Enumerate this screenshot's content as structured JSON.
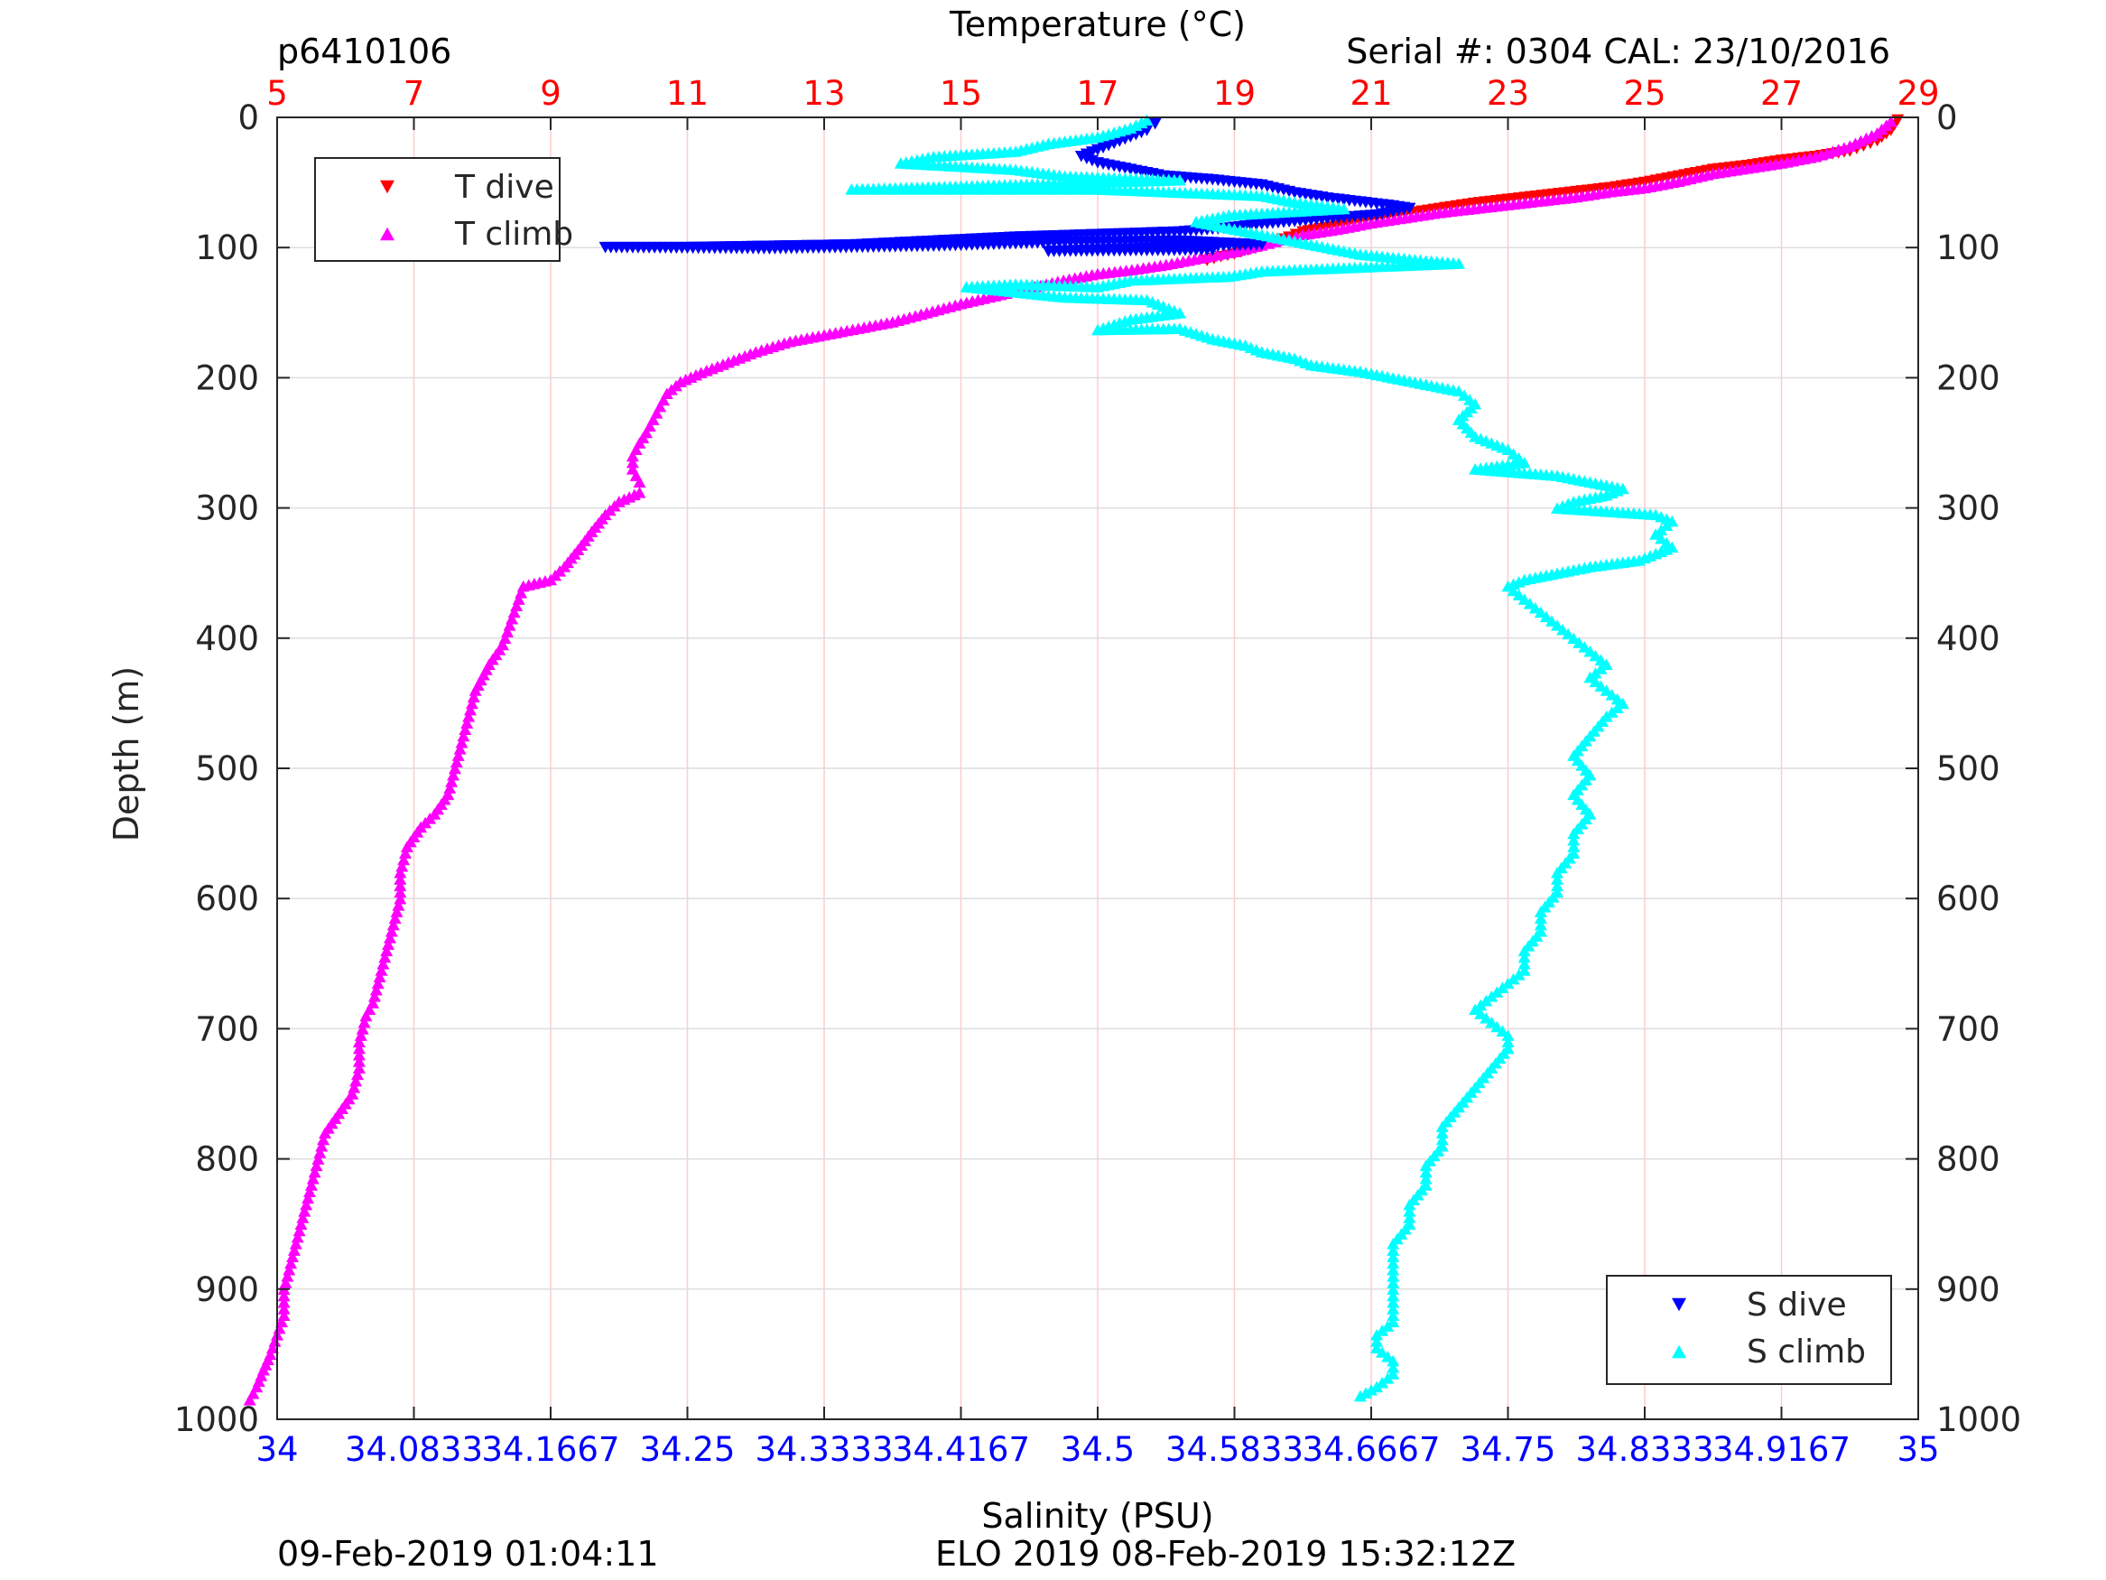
{
  "header": {
    "profile_id": "p6410106",
    "serial": "Serial #: 0304  CAL: 23/10/2016"
  },
  "footer": {
    "left": "09-Feb-2019 01:04:11",
    "right": "ELO 2019 08-Feb-2019 15:32:12Z"
  },
  "colors": {
    "t_dive": "#ff0000",
    "t_climb": "#ff00ff",
    "s_dive": "#0000ff",
    "s_climb": "#00ffff",
    "temp_axis": "#ff0000",
    "sal_axis": "#0000ff",
    "depth_axis": "#262626"
  },
  "chart_data": {
    "type": "scatter",
    "xlabel_top": "Temperature (°C)",
    "xlabel_bottom": "Salinity (PSU)",
    "ylabel": "Depth (m)",
    "temperature_range": [
      5,
      29
    ],
    "salinity_range": [
      34,
      35
    ],
    "depth_range": [
      0,
      1000
    ],
    "y_reversed": true,
    "grid": true,
    "temperature_ticks": [
      "5",
      "7",
      "9",
      "11",
      "13",
      "15",
      "17",
      "19",
      "21",
      "23",
      "25",
      "27",
      "29"
    ],
    "salinity_ticks": [
      "34",
      "34.0833",
      "34.1667",
      "34.25",
      "34.3333",
      "34.4167",
      "34.5",
      "34.5833",
      "34.6667",
      "34.75",
      "34.8333",
      "34.9167",
      "35"
    ],
    "depth_ticks": [
      "0",
      "100",
      "200",
      "300",
      "400",
      "500",
      "600",
      "700",
      "800",
      "900",
      "1000"
    ],
    "legends": [
      {
        "placement": "top-left",
        "entries": [
          {
            "label": "T dive",
            "marker": "triangle-down",
            "series": "t_dive"
          },
          {
            "label": "T climb",
            "marker": "triangle-up",
            "series": "t_climb"
          }
        ]
      },
      {
        "placement": "bottom-right",
        "entries": [
          {
            "label": "S dive",
            "marker": "triangle-down",
            "series": "s_dive"
          },
          {
            "label": "S climb",
            "marker": "triangle-up",
            "series": "s_climb"
          }
        ]
      }
    ],
    "series": [
      {
        "name": "T dive",
        "axis": "temperature",
        "marker": "triangle-down",
        "points": [
          [
            28.7,
            2
          ],
          [
            28.6,
            10
          ],
          [
            28.4,
            18
          ],
          [
            28.2,
            22
          ],
          [
            28.0,
            26
          ],
          [
            27.5,
            30
          ],
          [
            27.0,
            33
          ],
          [
            26.5,
            37
          ],
          [
            26.0,
            40
          ],
          [
            25.5,
            45
          ],
          [
            25.0,
            50
          ],
          [
            24.5,
            54
          ],
          [
            24.0,
            57
          ],
          [
            23.5,
            60
          ],
          [
            23.0,
            63
          ],
          [
            22.5,
            66
          ],
          [
            22.0,
            70
          ],
          [
            21.5,
            74
          ],
          [
            21.0,
            78
          ],
          [
            20.5,
            83
          ],
          [
            20.0,
            88
          ],
          [
            19.8,
            92
          ],
          [
            19.6,
            95
          ],
          [
            19.4,
            99
          ],
          [
            19.2,
            102
          ],
          [
            19.0,
            105
          ],
          [
            18.8,
            107
          ],
          [
            18.6,
            110
          ]
        ]
      },
      {
        "name": "T climb",
        "axis": "temperature",
        "marker": "triangle-up",
        "points": [
          [
            28.6,
            3
          ],
          [
            28.4,
            12
          ],
          [
            28.0,
            22
          ],
          [
            27.5,
            30
          ],
          [
            27.0,
            35
          ],
          [
            26.5,
            39
          ],
          [
            26.0,
            43
          ],
          [
            25.5,
            49
          ],
          [
            25.0,
            54
          ],
          [
            24.5,
            57
          ],
          [
            24.0,
            61
          ],
          [
            23.5,
            64
          ],
          [
            23.0,
            67
          ],
          [
            22.5,
            70
          ],
          [
            22.0,
            73
          ],
          [
            21.5,
            77
          ],
          [
            21.0,
            81
          ],
          [
            20.5,
            86
          ],
          [
            20.0,
            90
          ],
          [
            19.7,
            94
          ],
          [
            19.4,
            98
          ],
          [
            19.0,
            103
          ],
          [
            18.5,
            108
          ],
          [
            18.0,
            113
          ],
          [
            17.5,
            117
          ],
          [
            17.0,
            120
          ],
          [
            16.5,
            125
          ],
          [
            16.0,
            131
          ],
          [
            15.5,
            137
          ],
          [
            15.0,
            143
          ],
          [
            14.5,
            150
          ],
          [
            14.0,
            157
          ],
          [
            13.5,
            162
          ],
          [
            13.0,
            167
          ],
          [
            12.5,
            172
          ],
          [
            12.0,
            180
          ],
          [
            11.6,
            188
          ],
          [
            11.2,
            196
          ],
          [
            10.9,
            203
          ],
          [
            10.7,
            212
          ],
          [
            10.6,
            222
          ],
          [
            10.5,
            232
          ],
          [
            10.4,
            242
          ],
          [
            10.3,
            250
          ],
          [
            10.2,
            260
          ],
          [
            10.2,
            270
          ],
          [
            10.3,
            280
          ],
          [
            10.3,
            288
          ],
          [
            10.0,
            295
          ],
          [
            9.8,
            305
          ],
          [
            9.6,
            318
          ],
          [
            9.4,
            332
          ],
          [
            9.2,
            345
          ],
          [
            9.0,
            355
          ],
          [
            8.6,
            360
          ],
          [
            8.5,
            375
          ],
          [
            8.4,
            390
          ],
          [
            8.3,
            405
          ],
          [
            8.1,
            420
          ],
          [
            7.9,
            440
          ],
          [
            7.8,
            460
          ],
          [
            7.7,
            480
          ],
          [
            7.6,
            500
          ],
          [
            7.5,
            520
          ],
          [
            7.3,
            535
          ],
          [
            7.1,
            545
          ],
          [
            6.9,
            560
          ],
          [
            6.8,
            580
          ],
          [
            6.8,
            600
          ],
          [
            6.7,
            620
          ],
          [
            6.6,
            640
          ],
          [
            6.5,
            660
          ],
          [
            6.4,
            680
          ],
          [
            6.3,
            690
          ],
          [
            6.2,
            710
          ],
          [
            6.2,
            730
          ],
          [
            6.1,
            750
          ],
          [
            5.9,
            765
          ],
          [
            5.7,
            780
          ],
          [
            5.6,
            800
          ],
          [
            5.5,
            820
          ],
          [
            5.4,
            840
          ],
          [
            5.3,
            860
          ],
          [
            5.2,
            880
          ],
          [
            5.1,
            900
          ],
          [
            5.1,
            920
          ],
          [
            5.0,
            935
          ],
          [
            4.9,
            950
          ],
          [
            4.8,
            962
          ],
          [
            4.7,
            975
          ],
          [
            4.6,
            985
          ]
        ]
      },
      {
        "name": "S dive",
        "axis": "salinity",
        "marker": "triangle-down",
        "points": [
          [
            34.535,
            5
          ],
          [
            34.53,
            10
          ],
          [
            34.52,
            15
          ],
          [
            34.51,
            20
          ],
          [
            34.5,
            25
          ],
          [
            34.49,
            30
          ],
          [
            34.5,
            35
          ],
          [
            34.52,
            40
          ],
          [
            34.54,
            45
          ],
          [
            34.57,
            48
          ],
          [
            34.6,
            52
          ],
          [
            34.62,
            58
          ],
          [
            34.64,
            62
          ],
          [
            34.66,
            65
          ],
          [
            34.68,
            68
          ],
          [
            34.69,
            70
          ],
          [
            34.67,
            75
          ],
          [
            34.64,
            78
          ],
          [
            34.6,
            82
          ],
          [
            34.58,
            85
          ],
          [
            34.55,
            88
          ],
          [
            34.5,
            90
          ],
          [
            34.45,
            92
          ],
          [
            34.4,
            95
          ],
          [
            34.35,
            98
          ],
          [
            34.3,
            99
          ],
          [
            34.25,
            100
          ],
          [
            34.2,
            100
          ],
          [
            34.3,
            101
          ],
          [
            34.4,
            99
          ],
          [
            34.48,
            96
          ],
          [
            34.55,
            95
          ],
          [
            34.6,
            98
          ],
          [
            34.47,
            103
          ],
          [
            34.57,
            102
          ]
        ]
      },
      {
        "name": "S climb",
        "axis": "salinity",
        "marker": "triangle-up",
        "points": [
          [
            34.53,
            2
          ],
          [
            34.52,
            8
          ],
          [
            34.5,
            15
          ],
          [
            34.47,
            20
          ],
          [
            34.45,
            26
          ],
          [
            34.4,
            30
          ],
          [
            34.38,
            35
          ],
          [
            34.45,
            40
          ],
          [
            34.48,
            45
          ],
          [
            34.55,
            48
          ],
          [
            34.35,
            55
          ],
          [
            34.4,
            55
          ],
          [
            34.5,
            55
          ],
          [
            34.6,
            60
          ],
          [
            34.62,
            65
          ],
          [
            34.65,
            70
          ],
          [
            34.58,
            75
          ],
          [
            34.56,
            80
          ],
          [
            34.58,
            85
          ],
          [
            34.6,
            90
          ],
          [
            34.62,
            95
          ],
          [
            34.64,
            100
          ],
          [
            34.66,
            105
          ],
          [
            34.7,
            110
          ],
          [
            34.72,
            112
          ],
          [
            34.6,
            118
          ],
          [
            34.58,
            122
          ],
          [
            34.52,
            125
          ],
          [
            34.5,
            130
          ],
          [
            34.45,
            128
          ],
          [
            34.42,
            130
          ],
          [
            34.48,
            138
          ],
          [
            34.53,
            140
          ],
          [
            34.55,
            150
          ],
          [
            34.52,
            155
          ],
          [
            34.5,
            163
          ],
          [
            34.55,
            162
          ],
          [
            34.57,
            170
          ],
          [
            34.59,
            175
          ],
          [
            34.6,
            180
          ],
          [
            34.62,
            185
          ],
          [
            34.63,
            190
          ],
          [
            34.66,
            195
          ],
          [
            34.68,
            200
          ],
          [
            34.7,
            205
          ],
          [
            34.72,
            210
          ],
          [
            34.73,
            220
          ],
          [
            34.72,
            232
          ],
          [
            34.73,
            245
          ],
          [
            34.75,
            255
          ],
          [
            34.76,
            265
          ],
          [
            34.73,
            270
          ],
          [
            34.78,
            275
          ],
          [
            34.8,
            280
          ],
          [
            34.82,
            285
          ],
          [
            34.81,
            290
          ],
          [
            34.79,
            295
          ],
          [
            34.78,
            300
          ],
          [
            34.84,
            305
          ],
          [
            34.85,
            310
          ],
          [
            34.84,
            320
          ],
          [
            34.85,
            330
          ],
          [
            34.83,
            340
          ],
          [
            34.8,
            345
          ],
          [
            34.78,
            350
          ],
          [
            34.76,
            355
          ],
          [
            34.75,
            360
          ],
          [
            34.76,
            370
          ],
          [
            34.77,
            380
          ],
          [
            34.78,
            390
          ],
          [
            34.79,
            400
          ],
          [
            34.8,
            410
          ],
          [
            34.81,
            420
          ],
          [
            34.8,
            430
          ],
          [
            34.81,
            440
          ],
          [
            34.82,
            450
          ],
          [
            34.81,
            460
          ],
          [
            34.8,
            475
          ],
          [
            34.79,
            490
          ],
          [
            34.8,
            505
          ],
          [
            34.79,
            520
          ],
          [
            34.8,
            535
          ],
          [
            34.79,
            550
          ],
          [
            34.79,
            565
          ],
          [
            34.78,
            580
          ],
          [
            34.78,
            595
          ],
          [
            34.77,
            610
          ],
          [
            34.77,
            625
          ],
          [
            34.76,
            640
          ],
          [
            34.76,
            655
          ],
          [
            34.75,
            665
          ],
          [
            34.74,
            675
          ],
          [
            34.73,
            685
          ],
          [
            34.74,
            695
          ],
          [
            34.75,
            705
          ],
          [
            34.75,
            715
          ],
          [
            34.74,
            730
          ],
          [
            34.73,
            745
          ],
          [
            34.72,
            760
          ],
          [
            34.71,
            775
          ],
          [
            34.71,
            790
          ],
          [
            34.7,
            805
          ],
          [
            34.7,
            820
          ],
          [
            34.69,
            835
          ],
          [
            34.69,
            850
          ],
          [
            34.68,
            865
          ],
          [
            34.68,
            880
          ],
          [
            34.68,
            895
          ],
          [
            34.68,
            910
          ],
          [
            34.68,
            925
          ],
          [
            34.67,
            935
          ],
          [
            34.67,
            945
          ],
          [
            34.68,
            955
          ],
          [
            34.68,
            965
          ],
          [
            34.67,
            975
          ],
          [
            34.66,
            982
          ]
        ]
      }
    ]
  }
}
